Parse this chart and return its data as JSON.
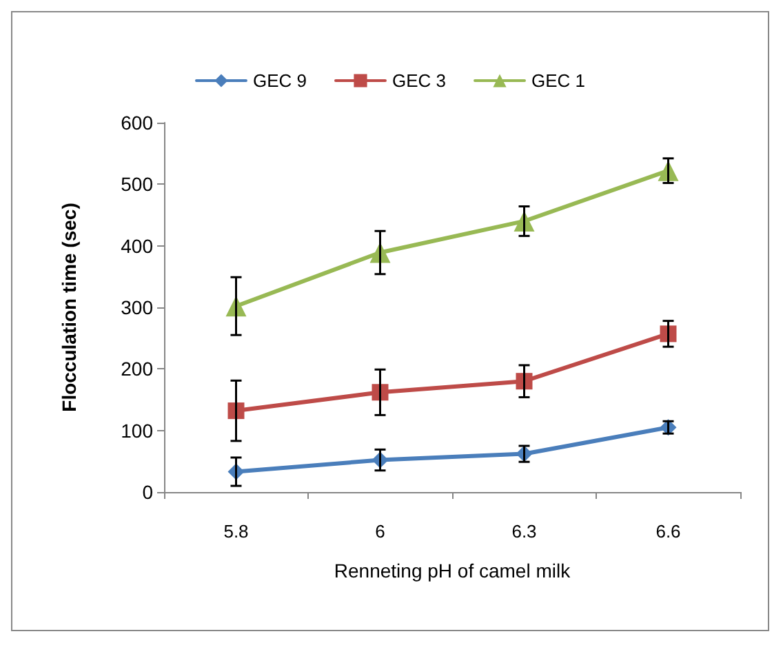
{
  "chart_data": {
    "type": "line",
    "xlabel": "Renneting pH of camel milk",
    "ylabel": "Flocculation time (sec)",
    "categories": [
      "5.8",
      "6",
      "6.3",
      "6.6"
    ],
    "ylim": [
      0,
      600
    ],
    "yticks": [
      0,
      100,
      200,
      300,
      400,
      500,
      600
    ],
    "grid": false,
    "legend": "top",
    "line_style": "solid",
    "series": [
      {
        "name": "GEC 9",
        "color": "#4a7ebb",
        "marker": "diamond",
        "values": [
          33,
          52,
          62,
          105
        ],
        "errors": [
          23,
          17,
          13,
          10
        ]
      },
      {
        "name": "GEC 3",
        "color": "#be4b48",
        "marker": "square",
        "values": [
          132,
          162,
          180,
          257
        ],
        "errors": [
          49,
          37,
          26,
          21
        ]
      },
      {
        "name": "GEC 1",
        "color": "#98b954",
        "marker": "triangle",
        "values": [
          302,
          389,
          440,
          522
        ],
        "errors": [
          47,
          35,
          24,
          20
        ]
      }
    ]
  }
}
